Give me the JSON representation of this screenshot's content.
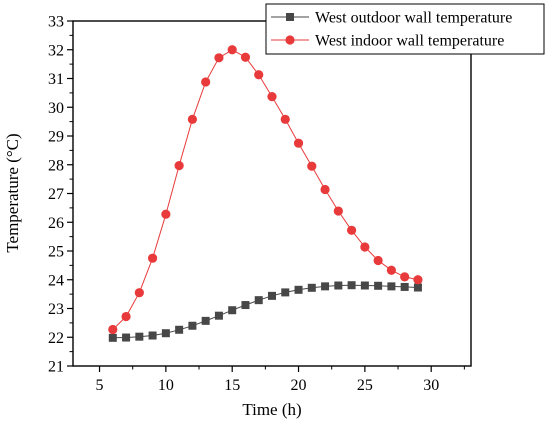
{
  "chart_data": {
    "type": "line",
    "title": "",
    "xlabel": "Time (h)",
    "ylabel": "Temperature (°C)",
    "xlim": [
      3,
      33
    ],
    "ylim": [
      21,
      33
    ],
    "xticks": [
      5,
      10,
      15,
      20,
      25,
      30
    ],
    "yticks": [
      21,
      22,
      23,
      24,
      25,
      26,
      27,
      28,
      29,
      30,
      31,
      32,
      33
    ],
    "grid": false,
    "legend_position": "top-right",
    "x": [
      6,
      7,
      8,
      9,
      10,
      11,
      12,
      13,
      14,
      15,
      16,
      17,
      18,
      19,
      20,
      21,
      22,
      23,
      24,
      25,
      26,
      27,
      28,
      29
    ],
    "series": [
      {
        "name": "West outdoor wall temperature",
        "color": "#474747",
        "marker": "square",
        "values": [
          21.98,
          21.99,
          22.02,
          22.06,
          22.14,
          22.26,
          22.4,
          22.57,
          22.75,
          22.94,
          23.12,
          23.29,
          23.44,
          23.56,
          23.65,
          23.72,
          23.77,
          23.8,
          23.81,
          23.8,
          23.79,
          23.77,
          23.75,
          23.73
        ]
      },
      {
        "name": "West indoor wall temperature",
        "color": "#e83a3a",
        "marker": "circle",
        "values": [
          22.27,
          22.72,
          23.55,
          24.75,
          26.28,
          27.97,
          29.58,
          30.88,
          31.72,
          32.0,
          31.74,
          31.13,
          30.37,
          29.58,
          28.75,
          27.95,
          27.14,
          26.39,
          25.72,
          25.14,
          24.67,
          24.33,
          24.1,
          24.0
        ]
      }
    ]
  }
}
